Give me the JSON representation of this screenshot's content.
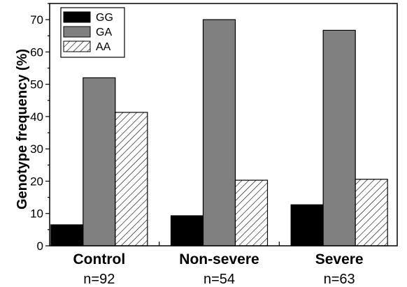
{
  "chart_data": {
    "type": "bar",
    "categories": [
      "Control",
      "Non-severe",
      "Severe"
    ],
    "category_counts": [
      "n=92",
      "n=54",
      "n=63"
    ],
    "series": [
      {
        "name": "GG",
        "values": [
          6.5,
          9.3,
          12.7
        ],
        "fill": "#000000",
        "pattern": "solid"
      },
      {
        "name": "GA",
        "values": [
          52.0,
          70.0,
          66.7
        ],
        "fill": "#808080",
        "pattern": "solid"
      },
      {
        "name": "AA",
        "values": [
          41.3,
          20.3,
          20.6
        ],
        "fill": "#ffffff",
        "pattern": "diagonal-hatch"
      }
    ],
    "ylabel": "Genotype frequency (%)",
    "xlabel": "",
    "ylim": [
      0,
      75
    ],
    "yticks": [
      0,
      10,
      20,
      30,
      40,
      50,
      60,
      70
    ],
    "grid": false,
    "legend_position": "top-left"
  }
}
